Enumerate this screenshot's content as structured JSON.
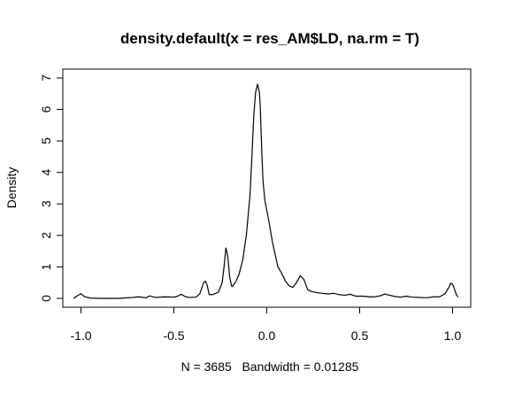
{
  "chart_data": {
    "type": "line",
    "title": "density.default(x = res_AM$LD, na.rm = T)",
    "xlabel": "N = 3685   Bandwidth = 0.01285",
    "ylabel": "Density",
    "xlim": [
      -1.05,
      1.05
    ],
    "ylim": [
      0,
      7
    ],
    "xticks": [
      -1.0,
      -0.5,
      0.0,
      0.5,
      1.0
    ],
    "xtick_labels": [
      "-1.0",
      "-0.5",
      "0.0",
      "0.5",
      "1.0"
    ],
    "yticks": [
      0,
      1,
      2,
      3,
      4,
      5,
      6,
      7
    ],
    "ytick_labels": [
      "0",
      "1",
      "2",
      "3",
      "4",
      "5",
      "6",
      "7"
    ],
    "grid": false,
    "series": [
      {
        "x": [
          -1.04,
          -1.02,
          -1.0,
          -0.98,
          -0.95,
          -0.9,
          -0.8,
          -0.72,
          -0.69,
          -0.65,
          -0.63,
          -0.6,
          -0.55,
          -0.5,
          -0.48,
          -0.46,
          -0.44,
          -0.42,
          -0.38,
          -0.36,
          -0.34,
          -0.33,
          -0.32,
          -0.31,
          -0.29,
          -0.26,
          -0.24,
          -0.23,
          -0.22,
          -0.21,
          -0.2,
          -0.19,
          -0.185,
          -0.17,
          -0.15,
          -0.13,
          -0.11,
          -0.09,
          -0.08,
          -0.07,
          -0.06,
          -0.05,
          -0.04,
          -0.035,
          -0.03,
          -0.025,
          -0.02,
          -0.01,
          0.0,
          0.01,
          0.03,
          0.06,
          0.08,
          0.1,
          0.12,
          0.14,
          0.16,
          0.18,
          0.2,
          0.22,
          0.24,
          0.27,
          0.3,
          0.33,
          0.36,
          0.39,
          0.42,
          0.45,
          0.48,
          0.52,
          0.55,
          0.58,
          0.61,
          0.635,
          0.66,
          0.69,
          0.72,
          0.75,
          0.78,
          0.82,
          0.86,
          0.9,
          0.93,
          0.96,
          0.98,
          0.99,
          1.0,
          1.01,
          1.02,
          1.03
        ],
        "y": [
          0.0,
          0.08,
          0.15,
          0.05,
          0.01,
          0.0,
          0.0,
          0.03,
          0.05,
          0.02,
          0.08,
          0.03,
          0.05,
          0.04,
          0.07,
          0.13,
          0.06,
          0.03,
          0.04,
          0.15,
          0.5,
          0.55,
          0.4,
          0.12,
          0.12,
          0.2,
          0.5,
          1.0,
          1.6,
          1.35,
          0.7,
          0.4,
          0.38,
          0.5,
          0.75,
          1.2,
          2.0,
          3.3,
          4.5,
          5.8,
          6.55,
          6.8,
          6.55,
          6.1,
          5.2,
          4.4,
          3.7,
          3.1,
          2.8,
          2.5,
          1.8,
          1.0,
          0.8,
          0.55,
          0.4,
          0.35,
          0.5,
          0.72,
          0.6,
          0.28,
          0.22,
          0.18,
          0.16,
          0.14,
          0.16,
          0.12,
          0.1,
          0.13,
          0.07,
          0.07,
          0.05,
          0.05,
          0.08,
          0.14,
          0.1,
          0.06,
          0.04,
          0.07,
          0.04,
          0.03,
          0.02,
          0.05,
          0.05,
          0.15,
          0.35,
          0.48,
          0.45,
          0.3,
          0.12,
          0.04
        ]
      }
    ]
  }
}
